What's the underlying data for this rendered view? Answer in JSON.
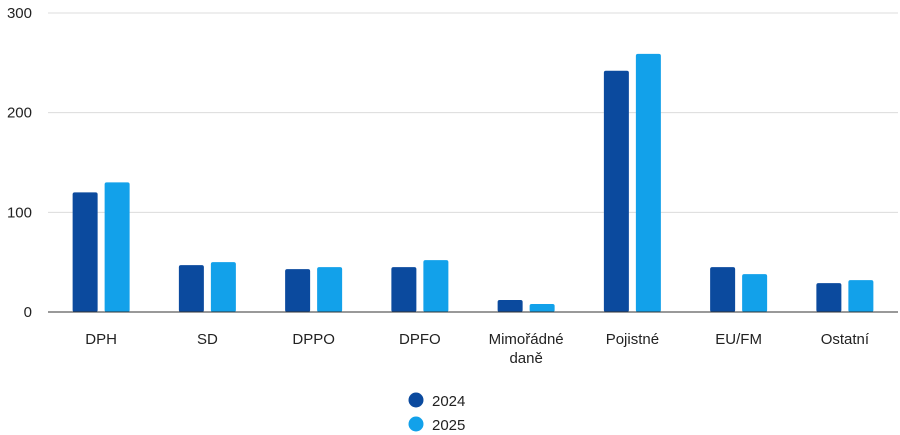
{
  "chart_data": {
    "type": "bar",
    "categories": [
      "DPH",
      "SD",
      "DPPO",
      "DPFO",
      "Mimořádné daně",
      "Pojistné",
      "EU/FM",
      "Ostatní"
    ],
    "series": [
      {
        "name": "2024",
        "color": "#0b4a9e",
        "values": [
          120,
          47,
          43,
          45,
          12,
          242,
          45,
          29
        ]
      },
      {
        "name": "2025",
        "color": "#12a1ea",
        "values": [
          130,
          50,
          45,
          52,
          8,
          259,
          38,
          32
        ]
      }
    ],
    "yticks": [
      0,
      100,
      200,
      300
    ],
    "ylim": [
      0,
      300
    ],
    "grid": true,
    "legend_position": "bottom-center",
    "title": "",
    "xlabel": "",
    "ylabel": ""
  }
}
